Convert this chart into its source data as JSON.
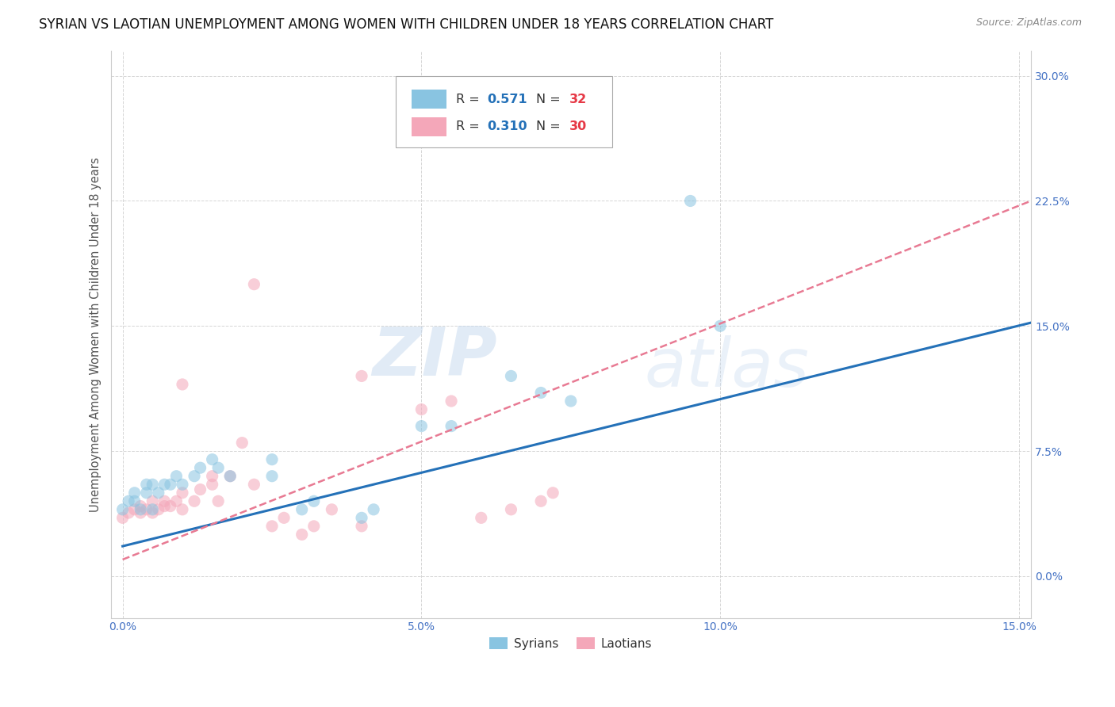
{
  "title": "SYRIAN VS LAOTIAN UNEMPLOYMENT AMONG WOMEN WITH CHILDREN UNDER 18 YEARS CORRELATION CHART",
  "source": "Source: ZipAtlas.com",
  "ylabel": "Unemployment Among Women with Children Under 18 years",
  "xlim": [
    -0.002,
    0.152
  ],
  "ylim": [
    -0.025,
    0.315
  ],
  "xticks": [
    0.0,
    0.05,
    0.1,
    0.15
  ],
  "xtick_labels": [
    "0.0%",
    "5.0%",
    "10.0%",
    "15.0%"
  ],
  "yticks": [
    0.0,
    0.075,
    0.15,
    0.225,
    0.3
  ],
  "ytick_labels": [
    "0.0%",
    "7.5%",
    "15.0%",
    "22.5%",
    "30.0%"
  ],
  "syrian_color": "#89c4e1",
  "laotian_color": "#f4a7b9",
  "syrian_line_color": "#2471b8",
  "laotian_line_color": "#e87a93",
  "watermark_zip": "ZIP",
  "watermark_atlas": "atlas",
  "syrians": [
    [
      0.0,
      0.04
    ],
    [
      0.001,
      0.045
    ],
    [
      0.002,
      0.045
    ],
    [
      0.002,
      0.05
    ],
    [
      0.003,
      0.04
    ],
    [
      0.004,
      0.05
    ],
    [
      0.004,
      0.055
    ],
    [
      0.005,
      0.04
    ],
    [
      0.005,
      0.055
    ],
    [
      0.006,
      0.05
    ],
    [
      0.007,
      0.055
    ],
    [
      0.008,
      0.055
    ],
    [
      0.009,
      0.06
    ],
    [
      0.01,
      0.055
    ],
    [
      0.012,
      0.06
    ],
    [
      0.013,
      0.065
    ],
    [
      0.015,
      0.07
    ],
    [
      0.016,
      0.065
    ],
    [
      0.018,
      0.06
    ],
    [
      0.025,
      0.07
    ],
    [
      0.025,
      0.06
    ],
    [
      0.03,
      0.04
    ],
    [
      0.032,
      0.045
    ],
    [
      0.04,
      0.035
    ],
    [
      0.042,
      0.04
    ],
    [
      0.05,
      0.09
    ],
    [
      0.055,
      0.09
    ],
    [
      0.065,
      0.12
    ],
    [
      0.07,
      0.11
    ],
    [
      0.075,
      0.105
    ],
    [
      0.095,
      0.225
    ],
    [
      0.1,
      0.15
    ]
  ],
  "laotians": [
    [
      0.0,
      0.035
    ],
    [
      0.001,
      0.038
    ],
    [
      0.002,
      0.04
    ],
    [
      0.003,
      0.038
    ],
    [
      0.003,
      0.042
    ],
    [
      0.004,
      0.04
    ],
    [
      0.005,
      0.038
    ],
    [
      0.005,
      0.045
    ],
    [
      0.006,
      0.04
    ],
    [
      0.007,
      0.042
    ],
    [
      0.007,
      0.045
    ],
    [
      0.008,
      0.042
    ],
    [
      0.009,
      0.045
    ],
    [
      0.01,
      0.04
    ],
    [
      0.01,
      0.05
    ],
    [
      0.012,
      0.045
    ],
    [
      0.013,
      0.052
    ],
    [
      0.015,
      0.055
    ],
    [
      0.015,
      0.06
    ],
    [
      0.016,
      0.045
    ],
    [
      0.018,
      0.06
    ],
    [
      0.02,
      0.08
    ],
    [
      0.022,
      0.055
    ],
    [
      0.025,
      0.03
    ],
    [
      0.027,
      0.035
    ],
    [
      0.03,
      0.025
    ],
    [
      0.032,
      0.03
    ],
    [
      0.035,
      0.04
    ],
    [
      0.04,
      0.03
    ],
    [
      0.022,
      0.175
    ],
    [
      0.04,
      0.12
    ],
    [
      0.05,
      0.1
    ],
    [
      0.055,
      0.105
    ],
    [
      0.06,
      0.035
    ],
    [
      0.065,
      0.04
    ],
    [
      0.07,
      0.045
    ],
    [
      0.072,
      0.05
    ],
    [
      0.01,
      0.115
    ]
  ],
  "syrian_trendline": [
    [
      0.0,
      0.018
    ],
    [
      0.152,
      0.152
    ]
  ],
  "laotian_trendline": [
    [
      0.0,
      0.01
    ],
    [
      0.152,
      0.225
    ]
  ],
  "bg_color": "#ffffff",
  "grid_color": "#cccccc",
  "title_fontsize": 12,
  "axis_label_fontsize": 10.5,
  "tick_fontsize": 10,
  "scatter_size": 120,
  "scatter_alpha": 0.55
}
